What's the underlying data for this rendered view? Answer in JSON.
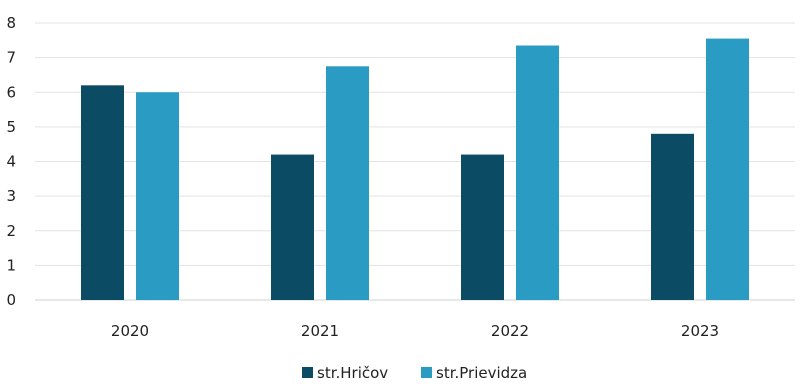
{
  "chart_data": {
    "type": "bar",
    "categories": [
      "2020",
      "2021",
      "2022",
      "2023"
    ],
    "series": [
      {
        "name": "str.Hričov",
        "color": "#0b4b64",
        "values": [
          6.2,
          4.2,
          4.2,
          4.8
        ]
      },
      {
        "name": "str.Prievidza",
        "color": "#2a9cc4",
        "values": [
          6.0,
          6.75,
          7.35,
          7.55
        ]
      }
    ],
    "ylim": [
      0,
      8
    ],
    "yticks": [
      "0",
      "1",
      "2",
      "3",
      "4",
      "5",
      "6",
      "7",
      "8"
    ],
    "grid": true,
    "gridColor": "#e3e3e3",
    "legend_position": "bottom"
  }
}
